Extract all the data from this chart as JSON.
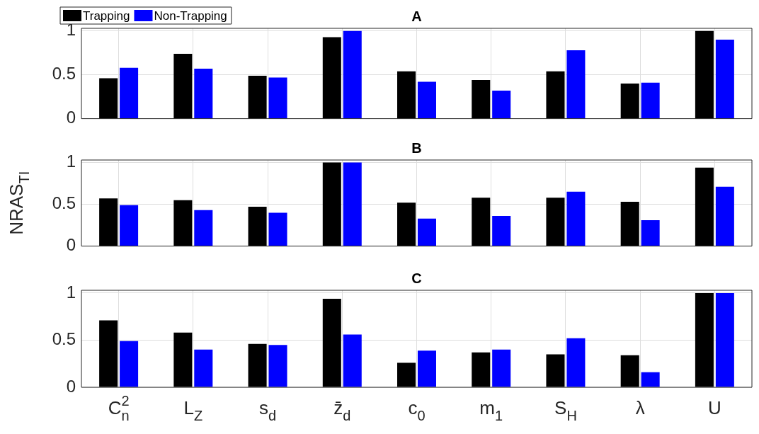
{
  "chart_data": [
    {
      "type": "bar",
      "title": "A",
      "categories": [
        null,
        null,
        null,
        null,
        null,
        null,
        null,
        null,
        null
      ],
      "series": [
        {
          "name": "Trapping",
          "color": "#000000",
          "values": [
            0.46,
            0.74,
            0.49,
            0.93,
            0.54,
            0.44,
            0.54,
            0.4,
            1.0
          ]
        },
        {
          "name": "Non-Trapping",
          "color": "#0000ff",
          "values": [
            0.58,
            0.57,
            0.47,
            1.0,
            0.42,
            0.32,
            0.78,
            0.41,
            0.9
          ]
        }
      ],
      "ylim": [
        0,
        1.03
      ],
      "yticks": [
        0,
        0.5,
        1
      ],
      "grid": true,
      "legend": "top left",
      "tick_labels": "y"
    },
    {
      "type": "bar",
      "title": "B",
      "ylabel": "NRAS$_{TI}$",
      "categories": [
        null,
        null,
        null,
        null,
        null,
        null,
        null,
        null,
        null
      ],
      "series": [
        {
          "color": "#000000",
          "values": [
            0.57,
            0.55,
            0.47,
            1.0,
            0.52,
            0.58,
            0.58,
            0.53,
            0.94
          ]
        },
        {
          "color": "#0000ff",
          "values": [
            0.49,
            0.43,
            0.4,
            1.0,
            0.33,
            0.36,
            0.65,
            0.31,
            0.71
          ]
        }
      ],
      "ylim": [
        0,
        1.03
      ],
      "yticks": [
        0,
        0.5,
        1
      ],
      "grid": true,
      "tick_labels": "y"
    },
    {
      "type": "bar",
      "title": "C",
      "categories": [
        "C$_{n}$$^{2}$",
        "L$_{Z}$",
        "s$_{d}$",
        "z̄$_{d}$",
        "c$_{0}$",
        "m$_{1}$",
        "S$_{H}$",
        "λ",
        "U"
      ],
      "series": [
        {
          "color": "#000000",
          "values": [
            0.71,
            0.58,
            0.46,
            0.94,
            0.26,
            0.37,
            0.35,
            0.34,
            1.0
          ]
        },
        {
          "color": "#0000ff",
          "values": [
            0.49,
            0.4,
            0.45,
            0.56,
            0.39,
            0.4,
            0.52,
            0.16,
            1.0
          ]
        }
      ],
      "ylim": [
        0,
        1.03
      ],
      "yticks": [
        0,
        0.5,
        1
      ],
      "grid": true
    }
  ]
}
